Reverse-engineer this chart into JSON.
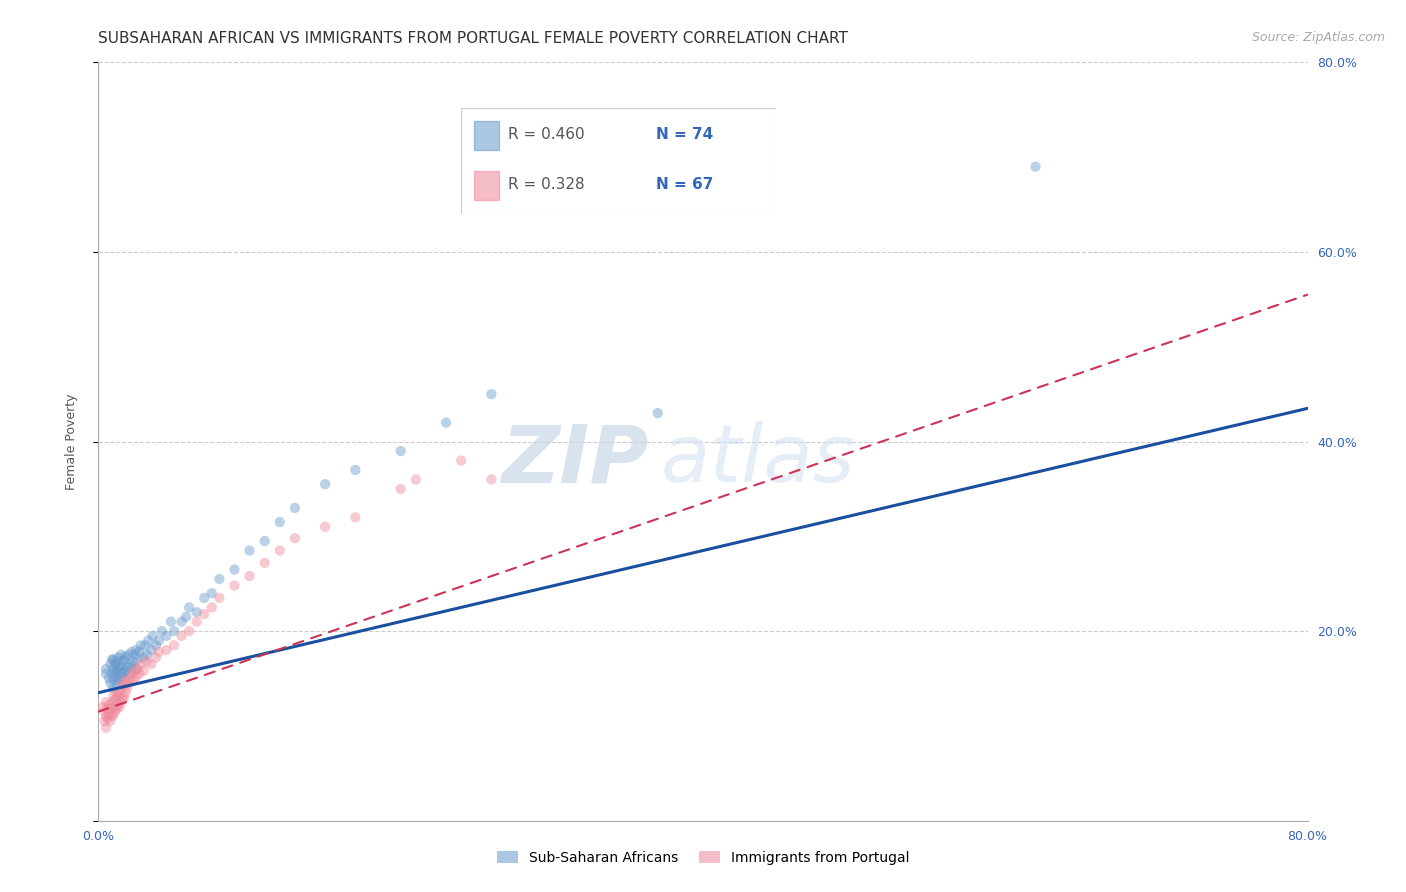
{
  "title": "SUBSAHARAN AFRICAN VS IMMIGRANTS FROM PORTUGAL FEMALE POVERTY CORRELATION CHART",
  "source": "Source: ZipAtlas.com",
  "ylabel": "Female Poverty",
  "xlim": [
    0,
    0.8
  ],
  "ylim": [
    0,
    0.8
  ],
  "xticks": [
    0.0,
    0.2,
    0.4,
    0.6,
    0.8
  ],
  "yticks": [
    0.0,
    0.2,
    0.4,
    0.6,
    0.8
  ],
  "xtick_labels": [
    "0.0%",
    "",
    "",
    "",
    "80.0%"
  ],
  "ytick_labels_right": [
    "20.0%",
    "40.0%",
    "60.0%",
    "80.0%"
  ],
  "grid_color": "#cccccc",
  "background_color": "#ffffff",
  "series1_color": "#6699cc",
  "series2_color": "#ee8899",
  "series1_label": "Sub-Saharan Africans",
  "series2_label": "Immigrants from Portugal",
  "legend_r1": "R = 0.460",
  "legend_n1": "N = 74",
  "legend_r2": "R = 0.328",
  "legend_n2": "N = 67",
  "series1_x": [
    0.005,
    0.005,
    0.007,
    0.008,
    0.008,
    0.009,
    0.009,
    0.01,
    0.01,
    0.01,
    0.01,
    0.011,
    0.011,
    0.012,
    0.012,
    0.012,
    0.013,
    0.013,
    0.013,
    0.014,
    0.014,
    0.015,
    0.015,
    0.015,
    0.016,
    0.016,
    0.017,
    0.017,
    0.018,
    0.018,
    0.019,
    0.02,
    0.02,
    0.021,
    0.022,
    0.022,
    0.023,
    0.024,
    0.025,
    0.025,
    0.026,
    0.027,
    0.028,
    0.03,
    0.031,
    0.032,
    0.033,
    0.035,
    0.036,
    0.038,
    0.04,
    0.042,
    0.045,
    0.048,
    0.05,
    0.055,
    0.058,
    0.06,
    0.065,
    0.07,
    0.075,
    0.08,
    0.09,
    0.1,
    0.11,
    0.12,
    0.13,
    0.15,
    0.17,
    0.2,
    0.23,
    0.26,
    0.37,
    0.62
  ],
  "series1_y": [
    0.155,
    0.16,
    0.15,
    0.145,
    0.165,
    0.155,
    0.17,
    0.14,
    0.15,
    0.16,
    0.17,
    0.155,
    0.165,
    0.145,
    0.158,
    0.168,
    0.15,
    0.16,
    0.172,
    0.148,
    0.162,
    0.152,
    0.163,
    0.175,
    0.155,
    0.168,
    0.157,
    0.17,
    0.158,
    0.173,
    0.162,
    0.155,
    0.175,
    0.165,
    0.162,
    0.178,
    0.168,
    0.175,
    0.16,
    0.18,
    0.17,
    0.178,
    0.185,
    0.172,
    0.185,
    0.175,
    0.19,
    0.18,
    0.195,
    0.185,
    0.19,
    0.2,
    0.195,
    0.21,
    0.2,
    0.21,
    0.215,
    0.225,
    0.22,
    0.235,
    0.24,
    0.255,
    0.265,
    0.285,
    0.295,
    0.315,
    0.33,
    0.355,
    0.37,
    0.39,
    0.42,
    0.45,
    0.43,
    0.69
  ],
  "series2_x": [
    0.003,
    0.004,
    0.004,
    0.005,
    0.005,
    0.005,
    0.006,
    0.006,
    0.007,
    0.007,
    0.008,
    0.008,
    0.009,
    0.009,
    0.01,
    0.01,
    0.01,
    0.011,
    0.011,
    0.012,
    0.012,
    0.013,
    0.013,
    0.014,
    0.014,
    0.015,
    0.015,
    0.016,
    0.016,
    0.017,
    0.017,
    0.018,
    0.018,
    0.019,
    0.02,
    0.021,
    0.022,
    0.023,
    0.024,
    0.025,
    0.026,
    0.027,
    0.028,
    0.03,
    0.032,
    0.035,
    0.038,
    0.04,
    0.045,
    0.05,
    0.055,
    0.06,
    0.065,
    0.07,
    0.075,
    0.08,
    0.09,
    0.1,
    0.11,
    0.12,
    0.13,
    0.15,
    0.17,
    0.2,
    0.21,
    0.24,
    0.26
  ],
  "series2_y": [
    0.12,
    0.105,
    0.115,
    0.098,
    0.11,
    0.125,
    0.108,
    0.118,
    0.112,
    0.122,
    0.105,
    0.118,
    0.11,
    0.125,
    0.112,
    0.12,
    0.132,
    0.115,
    0.128,
    0.118,
    0.13,
    0.122,
    0.135,
    0.12,
    0.132,
    0.125,
    0.138,
    0.128,
    0.142,
    0.13,
    0.145,
    0.135,
    0.148,
    0.14,
    0.145,
    0.15,
    0.155,
    0.148,
    0.158,
    0.152,
    0.16,
    0.155,
    0.165,
    0.158,
    0.168,
    0.165,
    0.172,
    0.178,
    0.18,
    0.185,
    0.195,
    0.2,
    0.21,
    0.218,
    0.225,
    0.235,
    0.248,
    0.258,
    0.272,
    0.285,
    0.298,
    0.31,
    0.32,
    0.35,
    0.36,
    0.38,
    0.36
  ],
  "line1_x0": 0.0,
  "line1_y0": 0.135,
  "line1_x1": 0.8,
  "line1_y1": 0.435,
  "line2_x0": 0.0,
  "line2_y0": 0.115,
  "line2_x1": 0.8,
  "line2_y1": 0.555,
  "watermark_zip": "ZIP",
  "watermark_atlas": "atlas",
  "title_fontsize": 11,
  "axis_label_fontsize": 9,
  "tick_fontsize": 9,
  "legend_fontsize": 11
}
